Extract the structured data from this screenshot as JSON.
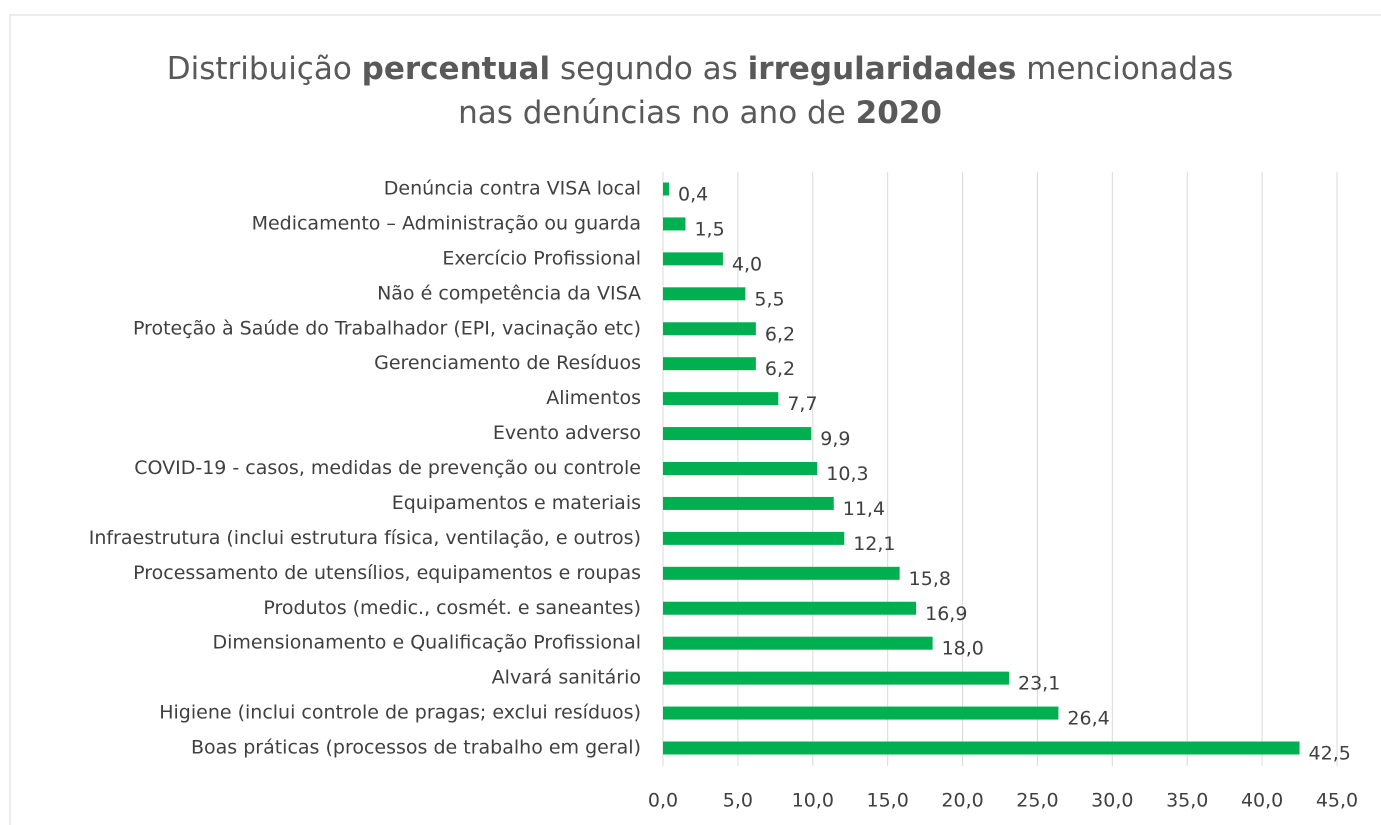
{
  "chart_data": {
    "type": "bar",
    "orientation": "horizontal",
    "title": [
      [
        {
          "text": "Distribuição ",
          "bold": false
        },
        {
          "text": "percentual",
          "bold": true
        },
        {
          "text": " segundo as ",
          "bold": false
        },
        {
          "text": "irregularidades",
          "bold": true
        },
        {
          "text": " mencionadas",
          "bold": false
        }
      ],
      [
        {
          "text": "nas denúncias no ano de ",
          "bold": false
        },
        {
          "text": "2020",
          "bold": true
        }
      ]
    ],
    "categories": [
      "Denúncia contra VISA local",
      "Medicamento – Administração ou guarda",
      "Exercício Profissional",
      "Não é competência da VISA",
      "Proteção à Saúde do Trabalhador (EPI, vacinação etc)",
      "Gerenciamento de Resíduos",
      "Alimentos",
      "Evento adverso",
      "COVID-19 - casos, medidas de prevenção ou controle",
      "Equipamentos e materiais",
      "Infraestrutura (inclui estrutura física, ventilação, e outros)",
      "Processamento de utensílios, equipamentos e roupas",
      "Produtos (medic., cosmét. e saneantes)",
      "Dimensionamento e Qualificação Profissional",
      "Alvará sanitário",
      "Higiene (inclui controle de pragas; exclui resíduos)",
      "Boas práticas (processos de trabalho em geral)"
    ],
    "values": [
      0.4,
      1.5,
      4.0,
      5.5,
      6.2,
      6.2,
      7.7,
      9.9,
      10.3,
      11.4,
      12.1,
      15.8,
      16.9,
      18.0,
      23.1,
      26.4,
      42.5
    ],
    "value_labels": [
      "0,4",
      "1,5",
      "4,0",
      "5,5",
      "6,2",
      "6,2",
      "7,7",
      "9,9",
      "10,3",
      "11,4",
      "12,1",
      "15,8",
      "16,9",
      "18,0",
      "23,1",
      "26,4",
      "42,5"
    ],
    "color": "#00b050",
    "xlim": [
      0,
      45
    ],
    "xticks": [
      {
        "value": 0,
        "label": "0,0"
      },
      {
        "value": 5,
        "label": "5,0"
      },
      {
        "value": 10,
        "label": "10,0"
      },
      {
        "value": 15,
        "label": "15,0"
      },
      {
        "value": 20,
        "label": "20,0"
      },
      {
        "value": 25,
        "label": "25,0"
      },
      {
        "value": 30,
        "label": "30,0"
      },
      {
        "value": 35,
        "label": "35,0"
      },
      {
        "value": 40,
        "label": "40,0"
      },
      {
        "value": 45,
        "label": "45,0"
      }
    ],
    "grid": true
  }
}
